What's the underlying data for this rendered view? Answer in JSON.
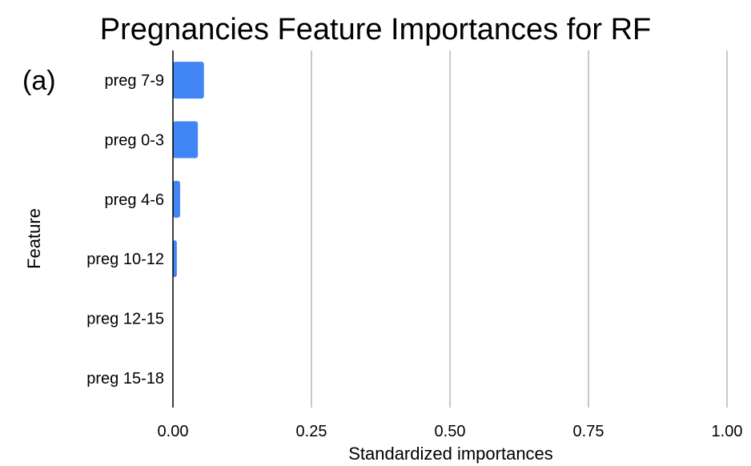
{
  "panel_label": "(a)",
  "chart_data": {
    "type": "bar",
    "orientation": "horizontal",
    "title": "Pregnancies Feature Importances for RF",
    "xlabel": "Standardized importances",
    "ylabel": "Feature",
    "categories": [
      "preg 7-9",
      "preg 0-3",
      "preg 4-6",
      "preg 10-12",
      "preg 12-15",
      "preg 15-18"
    ],
    "values": [
      0.056,
      0.045,
      0.013,
      0.007,
      0.0,
      0.0
    ],
    "xlim": [
      0,
      1
    ],
    "xticks": [
      0,
      0.25,
      0.5,
      0.75,
      1.0
    ],
    "xtick_labels": [
      "0.00",
      "0.25",
      "0.50",
      "0.75",
      "1.00"
    ],
    "grid": "vertical",
    "legend": "none",
    "bar_color": "#4285f4",
    "gridline_color": "#c8c8c8",
    "axis_color": "#000000"
  }
}
